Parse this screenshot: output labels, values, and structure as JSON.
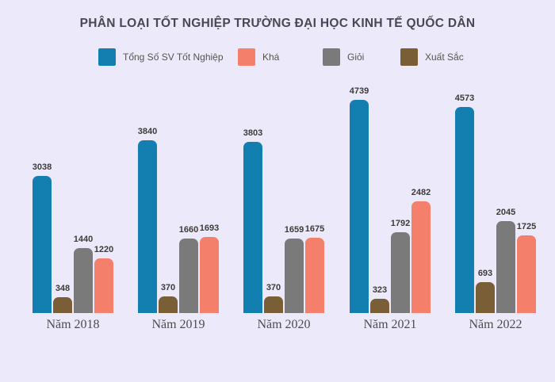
{
  "colors": {
    "background": "#ECEAFA",
    "title_text": "#4A4652",
    "legend_text": "#57534E",
    "value_label_text": "#3D3A3A",
    "axis_label_text": "#4D4B4B"
  },
  "chart_data": {
    "type": "bar",
    "title": "PHÂN LOẠI TỐT NGHIỆP TRƯỜNG ĐẠI HỌC KINH TẾ QUỐC DÂN",
    "categories": [
      "Năm 2018",
      "Năm 2019",
      "Năm 2020",
      "Năm 2021",
      "Năm 2022"
    ],
    "series": [
      {
        "name": "Tổng Số SV Tốt Nghiệp",
        "color": "#137FB1",
        "values": [
          3038,
          3840,
          3803,
          4739,
          4573
        ]
      },
      {
        "name": "Khá",
        "color": "#F4806B",
        "values": [
          1220,
          1693,
          1675,
          2482,
          1725
        ]
      },
      {
        "name": "Giỏi",
        "color": "#7A7A7A",
        "values": [
          1440,
          1660,
          1659,
          1792,
          2045
        ]
      },
      {
        "name": "Xuất Sắc",
        "color": "#7A5F36",
        "values": [
          348,
          370,
          370,
          323,
          693
        ]
      }
    ],
    "bar_order_by_series_index": [
      0,
      3,
      2,
      1
    ],
    "ylim": [
      0,
      5000
    ],
    "grid": false,
    "y_axis_shown": false,
    "legend_position": "top",
    "value_labels": true
  }
}
